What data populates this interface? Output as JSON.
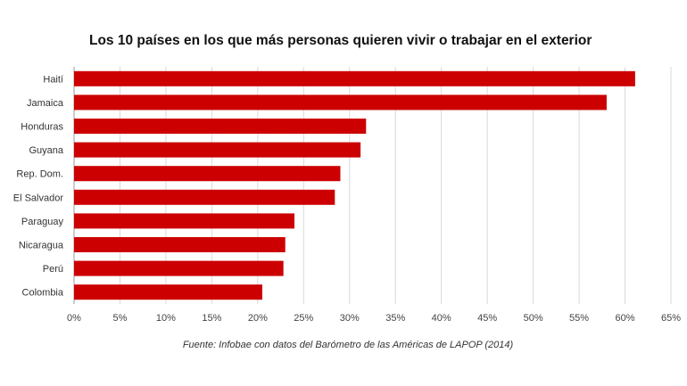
{
  "chart_data": {
    "type": "bar",
    "orientation": "horizontal",
    "title": "Los 10 países en los que más personas quieren vivir o trabajar en el exterior",
    "source": "Fuente: Infobae con datos del Barómetro de las Américas de LAPOP (2014)",
    "categories": [
      "Haití",
      "Jamaica",
      "Honduras",
      "Guyana",
      "Rep. Dom.",
      "El Salvador",
      "Paraguay",
      "Nicaragua",
      "Perú",
      "Colombia"
    ],
    "values": [
      61.1,
      58.0,
      31.8,
      31.2,
      29.0,
      28.4,
      24.0,
      23.0,
      22.8,
      20.5
    ],
    "xlim": [
      0,
      65
    ],
    "x_ticks": [
      "0%",
      "5%",
      "10%",
      "15%",
      "20%",
      "25%",
      "30%",
      "35%",
      "40%",
      "45%",
      "50%",
      "55%",
      "60%",
      "65%"
    ],
    "grid": true,
    "bar_color": "#cc0000"
  }
}
